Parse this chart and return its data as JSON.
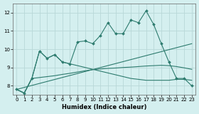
{
  "xlabel": "Humidex (Indice chaleur)",
  "bg_color": "#d4efef",
  "line_color": "#2d7b6e",
  "grid_color": "#c0e0e0",
  "xlim": [
    -0.5,
    23.5
  ],
  "ylim": [
    7.5,
    12.5
  ],
  "yticks": [
    8,
    9,
    10,
    11,
    12
  ],
  "xticks": [
    0,
    1,
    2,
    3,
    4,
    5,
    6,
    7,
    8,
    9,
    10,
    11,
    12,
    13,
    14,
    15,
    16,
    17,
    18,
    19,
    20,
    21,
    22,
    23
  ],
  "series1_x": [
    0,
    1,
    2,
    3,
    4,
    5,
    6,
    7,
    8,
    9,
    10,
    11,
    12,
    13,
    14,
    15,
    16,
    17,
    18,
    19,
    20,
    21,
    22,
    23
  ],
  "series1_y": [
    7.8,
    7.6,
    8.4,
    9.9,
    9.5,
    9.7,
    9.3,
    9.2,
    10.4,
    10.45,
    10.3,
    10.75,
    11.45,
    10.85,
    10.85,
    11.6,
    11.45,
    12.1,
    11.35,
    10.3,
    9.3,
    8.4,
    8.4,
    8.0
  ],
  "series2_x": [
    0,
    1,
    2,
    3,
    4,
    5,
    6,
    7,
    8,
    9,
    10,
    11,
    12,
    13,
    14,
    15,
    16,
    17,
    18,
    19,
    20,
    21,
    22,
    23
  ],
  "series2_y": [
    7.8,
    7.6,
    8.4,
    8.45,
    8.5,
    8.55,
    8.62,
    8.68,
    8.75,
    8.82,
    8.88,
    8.92,
    8.95,
    8.97,
    9.0,
    9.02,
    9.05,
    9.08,
    9.1,
    9.12,
    9.1,
    9.05,
    8.98,
    8.9
  ],
  "series3_x": [
    0,
    1,
    2,
    3,
    4,
    5,
    6,
    7,
    8,
    9,
    10,
    11,
    12,
    13,
    14,
    15,
    16,
    17,
    18,
    19,
    20,
    21,
    22,
    23
  ],
  "series3_y": [
    7.8,
    7.6,
    8.4,
    9.9,
    9.5,
    9.7,
    9.3,
    9.2,
    9.1,
    9.0,
    8.9,
    8.8,
    8.7,
    8.6,
    8.5,
    8.4,
    8.35,
    8.3,
    8.3,
    8.3,
    8.3,
    8.35,
    8.35,
    8.3
  ],
  "series4_x": [
    0,
    23
  ],
  "series4_y": [
    7.8,
    10.3
  ]
}
